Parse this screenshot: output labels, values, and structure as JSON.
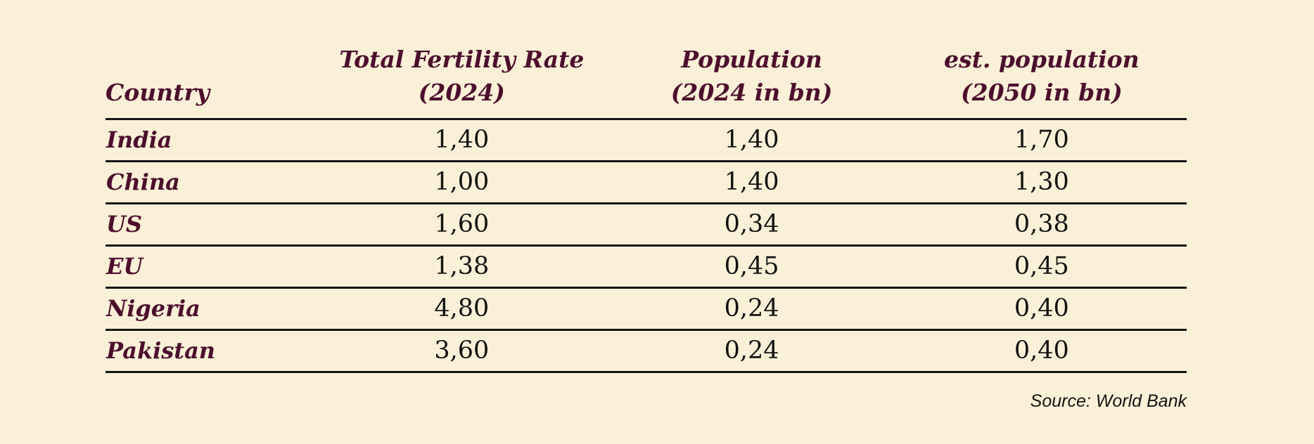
{
  "page": {
    "background_color": "#faf0d8",
    "accent_color": "#4d0e2d",
    "rule_color": "#141414"
  },
  "table": {
    "header": {
      "country": "Country",
      "col2_line1": "Total Fertility Rate",
      "col2_line2": "(2024)",
      "col3_line1": "Population",
      "col3_line2": "(2024 in bn)",
      "col4_line1": "est. population",
      "col4_line2": "(2050 in bn)"
    },
    "rows": [
      {
        "country": "India",
        "tfr": "1,40",
        "pop2024": "1,40",
        "pop2050": "1,70"
      },
      {
        "country": "China",
        "tfr": "1,00",
        "pop2024": "1,40",
        "pop2050": "1,30"
      },
      {
        "country": "US",
        "tfr": "1,60",
        "pop2024": "0,34",
        "pop2050": "0,38"
      },
      {
        "country": "EU",
        "tfr": "1,38",
        "pop2024": "0,45",
        "pop2050": "0,45"
      },
      {
        "country": "Nigeria",
        "tfr": "4,80",
        "pop2024": "0,24",
        "pop2050": "0,40"
      },
      {
        "country": "Pakistan",
        "tfr": "3,60",
        "pop2024": "0,24",
        "pop2050": "0,40"
      }
    ]
  },
  "source": "Source: World Bank",
  "chart_data": {
    "type": "table",
    "columns": [
      "Country",
      "Total Fertility Rate (2024)",
      "Population (2024 in bn)",
      "est. population (2050 in bn)"
    ],
    "rows": [
      [
        "India",
        "1,40",
        "1,40",
        "1,70"
      ],
      [
        "China",
        "1,00",
        "1,40",
        "1,30"
      ],
      [
        "US",
        "1,60",
        "0,34",
        "0,38"
      ],
      [
        "EU",
        "1,38",
        "0,45",
        "0,45"
      ],
      [
        "Nigeria",
        "4,80",
        "0,24",
        "0,40"
      ],
      [
        "Pakistan",
        "3,60",
        "0,24",
        "0,40"
      ]
    ],
    "numeric_format": "decimal comma",
    "source": "Source: World Bank"
  }
}
